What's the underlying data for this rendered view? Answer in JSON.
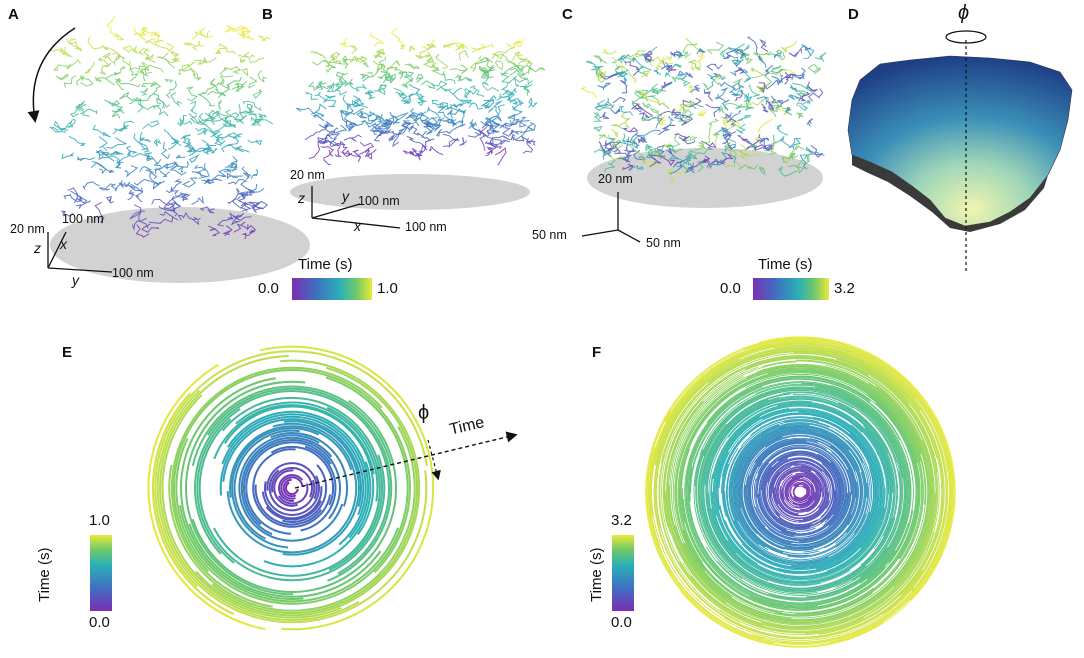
{
  "panels": {
    "A": {
      "letter": "A",
      "scale": {
        "z_len": "20 nm",
        "x_len": "100 nm",
        "y_len": "100 nm"
      },
      "axes": {
        "z": "z",
        "x": "x",
        "y": "y"
      }
    },
    "B": {
      "letter": "B",
      "scale": {
        "z_len": "20 nm",
        "y_len": "100 nm",
        "x_len": "100 nm"
      },
      "axes": {
        "z": "z",
        "y": "y",
        "x": "x"
      },
      "colorbar": {
        "title": "Time (s)",
        "min": "0.0",
        "max": "1.0"
      }
    },
    "C": {
      "letter": "C",
      "scale": {
        "z_len": "20 nm",
        "x_len": "50 nm",
        "y_len": "50 nm"
      },
      "colorbar": {
        "title": "Time (s)",
        "min": "0.0",
        "max": "3.2"
      }
    },
    "D": {
      "letter": "D",
      "angle_symbol": "ϕ"
    },
    "E": {
      "letter": "E",
      "angle_symbol": "ϕ",
      "time_arrow_label": "Time",
      "colorbar": {
        "title": "Time (s)",
        "min": "0.0",
        "max": "1.0"
      }
    },
    "F": {
      "letter": "F",
      "colorbar": {
        "title": "Time (s)",
        "min": "0.0",
        "max": "3.2"
      }
    }
  },
  "colors": {
    "viridis_start": "#5b2a9a",
    "viridis_mid1": "#3f6fc0",
    "viridis_mid2": "#2bb0b8",
    "viridis_mid3": "#6cc86a",
    "viridis_end": "#e8e83a",
    "shadow": "#cfcfcf"
  }
}
